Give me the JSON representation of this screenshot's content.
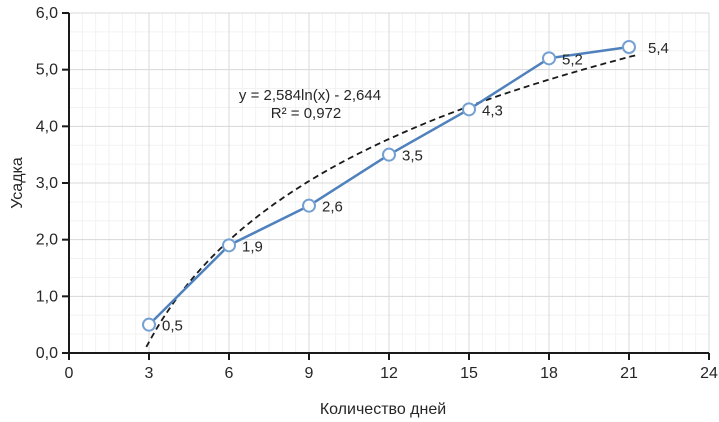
{
  "chart_data": {
    "type": "line",
    "title": "",
    "xlabel": "Количество дней",
    "ylabel": "Усадка",
    "xlim": [
      0,
      24
    ],
    "ylim": [
      0,
      6
    ],
    "x_ticks": [
      0,
      3,
      6,
      9,
      12,
      15,
      18,
      21,
      24
    ],
    "x_tick_labels": [
      "0",
      "3",
      "6",
      "9",
      "12",
      "15",
      "18",
      "21",
      "24"
    ],
    "y_ticks": [
      0,
      1,
      2,
      3,
      4,
      5,
      6
    ],
    "y_tick_labels": [
      "0,0",
      "1,0",
      "2,0",
      "3,0",
      "4,0",
      "5,0",
      "6,0"
    ],
    "grid": {
      "major_on": true,
      "minor_on": true
    },
    "legend": "none",
    "x": [
      3,
      6,
      9,
      12,
      15,
      18,
      21
    ],
    "series": [
      {
        "name": "Усадка",
        "values": [
          0.5,
          1.9,
          2.6,
          3.5,
          4.3,
          5.2,
          5.4
        ]
      }
    ],
    "point_labels": [
      "0,5",
      "1,9",
      "2,6",
      "3,5",
      "4,3",
      "5,2",
      "5,4"
    ],
    "trendline": {
      "type": "logarithmic",
      "a": 2.584,
      "b": -2.644,
      "x_start": 2.9,
      "x_end": 21.4,
      "equation": "y = 2,584ln(x) - 2,644",
      "r_squared": "R² = 0,972"
    },
    "colors": {
      "series_line": "#4f81bd",
      "marker_stroke": "#74a0d2",
      "marker_fill": "#ffffff",
      "trendline": "#1a1a1a",
      "axis": "#1a1a1a",
      "major_grid": "#d9d9d9",
      "minor_grid": "#f2f2f2",
      "text": "#262626"
    }
  }
}
